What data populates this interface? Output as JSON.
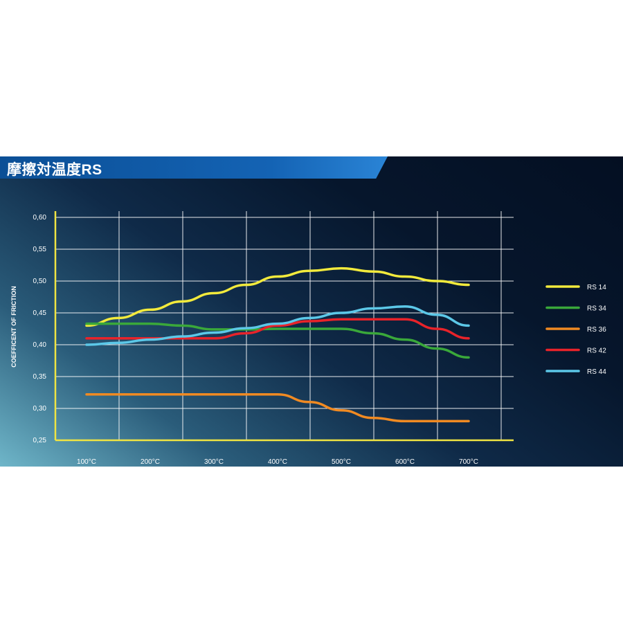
{
  "title": "摩擦対温度RS",
  "colors": {
    "grid": "#ffffff",
    "frame": "#f0e442"
  },
  "chart_data": {
    "type": "line",
    "xlabel": "",
    "ylabel": "COEFFICENT OF FRICTION",
    "x": [
      100,
      200,
      300,
      400,
      500,
      600,
      700
    ],
    "x_tick_labels": [
      "100°C",
      "200°C",
      "300°C",
      "400°C",
      "500°C",
      "600°C",
      "700°C"
    ],
    "y_tick_labels": [
      "0,60",
      "0,55",
      "0,50",
      "0,45",
      "0,40",
      "0,35",
      "0,30",
      "0,25"
    ],
    "y_ticks": [
      0.6,
      0.55,
      0.5,
      0.45,
      0.4,
      0.35,
      0.3,
      0.25
    ],
    "xlim": [
      100,
      700
    ],
    "ylim": [
      0.25,
      0.6
    ],
    "grid": true,
    "legend_position": "right",
    "series": [
      {
        "name": "RS 14",
        "color": "#f2ea3c",
        "points": [
          [
            100,
            0.43
          ],
          [
            150,
            0.442
          ],
          [
            200,
            0.455
          ],
          [
            250,
            0.468
          ],
          [
            300,
            0.481
          ],
          [
            350,
            0.494
          ],
          [
            400,
            0.507
          ],
          [
            450,
            0.516
          ],
          [
            500,
            0.52
          ],
          [
            550,
            0.515
          ],
          [
            600,
            0.507
          ],
          [
            650,
            0.5
          ],
          [
            700,
            0.494
          ]
        ]
      },
      {
        "name": "RS 34",
        "color": "#3aa83a",
        "points": [
          [
            100,
            0.433
          ],
          [
            200,
            0.433
          ],
          [
            250,
            0.43
          ],
          [
            300,
            0.424
          ],
          [
            350,
            0.424
          ],
          [
            400,
            0.425
          ],
          [
            450,
            0.425
          ],
          [
            500,
            0.425
          ],
          [
            550,
            0.418
          ],
          [
            600,
            0.408
          ],
          [
            650,
            0.394
          ],
          [
            700,
            0.38
          ]
        ]
      },
      {
        "name": "RS 36",
        "color": "#f08a22",
        "points": [
          [
            100,
            0.322
          ],
          [
            200,
            0.322
          ],
          [
            300,
            0.322
          ],
          [
            400,
            0.322
          ],
          [
            450,
            0.31
          ],
          [
            500,
            0.297
          ],
          [
            550,
            0.285
          ],
          [
            600,
            0.28
          ],
          [
            650,
            0.28
          ],
          [
            700,
            0.28
          ]
        ]
      },
      {
        "name": "RS 42",
        "color": "#e8232a",
        "points": [
          [
            100,
            0.41
          ],
          [
            200,
            0.41
          ],
          [
            250,
            0.41
          ],
          [
            300,
            0.41
          ],
          [
            350,
            0.418
          ],
          [
            400,
            0.43
          ],
          [
            450,
            0.437
          ],
          [
            500,
            0.44
          ],
          [
            550,
            0.44
          ],
          [
            600,
            0.44
          ],
          [
            650,
            0.425
          ],
          [
            700,
            0.41
          ]
        ]
      },
      {
        "name": "RS 44",
        "color": "#5cc8e8",
        "points": [
          [
            100,
            0.4
          ],
          [
            150,
            0.403
          ],
          [
            200,
            0.408
          ],
          [
            250,
            0.413
          ],
          [
            300,
            0.419
          ],
          [
            350,
            0.426
          ],
          [
            400,
            0.433
          ],
          [
            450,
            0.442
          ],
          [
            500,
            0.45
          ],
          [
            550,
            0.457
          ],
          [
            600,
            0.46
          ],
          [
            650,
            0.447
          ],
          [
            700,
            0.43
          ]
        ]
      }
    ]
  }
}
